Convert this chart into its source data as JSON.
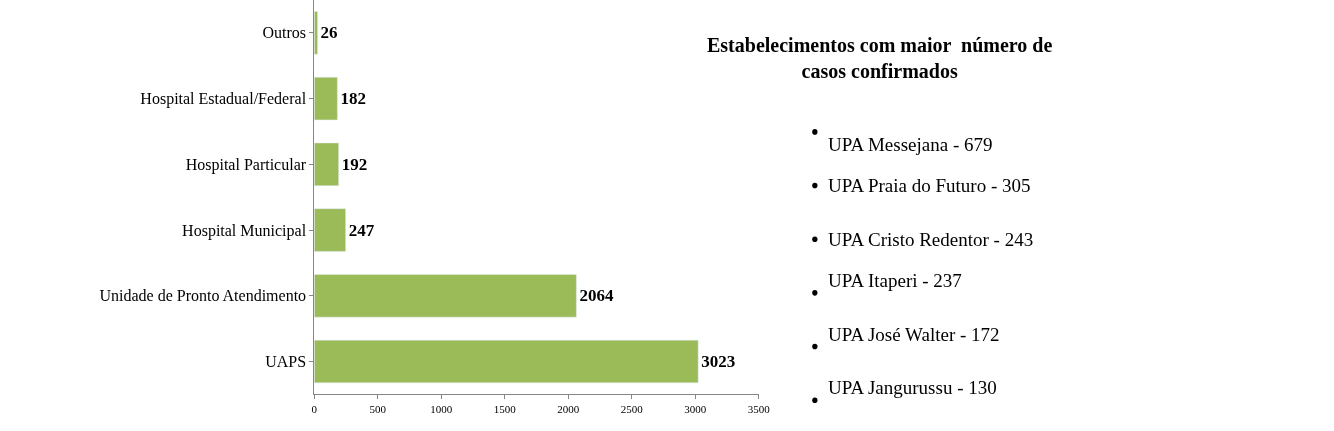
{
  "chart_data": [
    {
      "type": "bar",
      "orientation": "horizontal",
      "categories": [
        "Outros",
        "Hospital Estadual/Federal",
        "Hospital Particular",
        "Hospital Municipal",
        "Unidade de Pronto Atendimento",
        "UAPS"
      ],
      "values": [
        26,
        182,
        192,
        247,
        2064,
        3023
      ],
      "color": "#9bbb59",
      "data_labels": true,
      "xlim": [
        0,
        3500
      ],
      "xticks": [
        0,
        500,
        1000,
        1500,
        2000,
        2500,
        3000,
        3500
      ]
    },
    {
      "type": "other",
      "title": "Estabelecimentos com maior  número de casos confirmados",
      "annotations": [
        "UPA Messejana - 679",
        "UPA Praia do Futuro - 305",
        "UPA Cristo Redentor - 243",
        "UPA Itaperi - 237",
        "UPA José Walter - 172",
        "UPA Jangurussu - 130"
      ]
    }
  ]
}
